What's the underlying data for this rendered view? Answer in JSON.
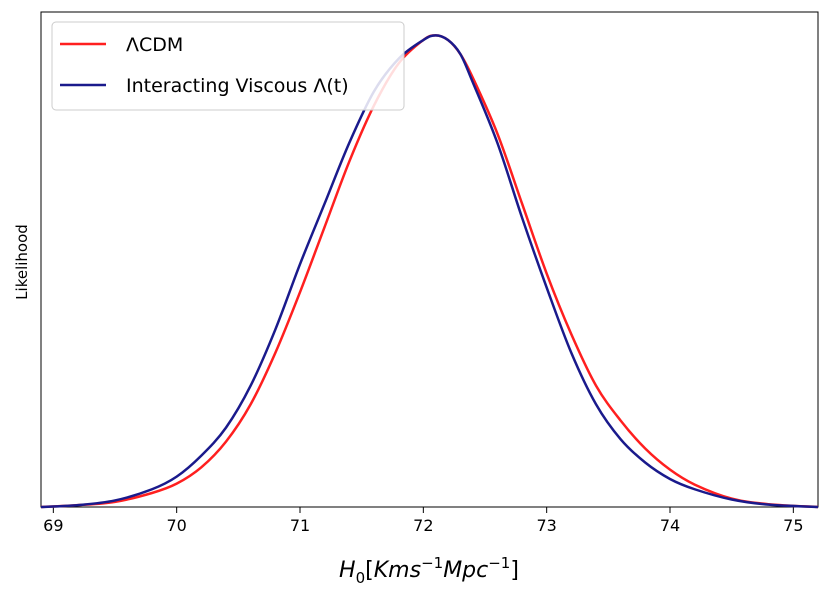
{
  "chart_data": {
    "type": "line",
    "title": "",
    "xlabel_main": "H",
    "xlabel_sub": "0",
    "xlabel_bracket_open": "[",
    "xlabel_kms": "Kms",
    "xlabel_exp1": "−1",
    "xlabel_mpc": "Mpc",
    "xlabel_exp2": "−1",
    "xlabel_bracket_close": "]",
    "ylabel": "Likelihood",
    "xlim": [
      68.9,
      75.2
    ],
    "ylim": [
      0,
      1.06
    ],
    "xticks": [
      69,
      70,
      71,
      72,
      73,
      74,
      75
    ],
    "xtick_labels": [
      "69",
      "70",
      "71",
      "72",
      "73",
      "74",
      "75"
    ],
    "yticks_shown": false,
    "grid": false,
    "legend": {
      "placement": "top-left",
      "frame": true
    },
    "series": [
      {
        "name": "ΛCDM",
        "color": "#ff1f1f",
        "x": [
          68.9,
          69.2,
          69.5,
          69.8,
          70.0,
          70.2,
          70.4,
          70.6,
          70.8,
          71.0,
          71.2,
          71.4,
          71.6,
          71.8,
          72.0,
          72.1,
          72.2,
          72.3,
          72.4,
          72.6,
          72.8,
          73.0,
          73.2,
          73.4,
          73.6,
          73.8,
          74.0,
          74.2,
          74.5,
          74.8,
          75.2
        ],
        "y": [
          0.0,
          0.004,
          0.011,
          0.03,
          0.05,
          0.085,
          0.14,
          0.22,
          0.33,
          0.46,
          0.6,
          0.74,
          0.86,
          0.95,
          1.0,
          1.01,
          1.0,
          0.97,
          0.92,
          0.8,
          0.65,
          0.5,
          0.37,
          0.26,
          0.185,
          0.125,
          0.08,
          0.048,
          0.018,
          0.006,
          0.0
        ]
      },
      {
        "name": "Interacting Viscous Λ(t)",
        "color": "#1a1a8c",
        "x": [
          68.9,
          69.2,
          69.5,
          69.8,
          70.0,
          70.2,
          70.4,
          70.6,
          70.8,
          71.0,
          71.2,
          71.4,
          71.6,
          71.8,
          72.0,
          72.1,
          72.2,
          72.3,
          72.4,
          72.6,
          72.8,
          73.0,
          73.2,
          73.4,
          73.6,
          73.8,
          74.0,
          74.2,
          74.5,
          74.8,
          75.2
        ],
        "y": [
          0.0,
          0.004,
          0.014,
          0.038,
          0.065,
          0.11,
          0.17,
          0.26,
          0.38,
          0.52,
          0.65,
          0.78,
          0.89,
          0.96,
          1.0,
          1.01,
          1.0,
          0.97,
          0.91,
          0.78,
          0.62,
          0.47,
          0.33,
          0.22,
          0.145,
          0.095,
          0.06,
          0.038,
          0.016,
          0.005,
          0.0
        ]
      }
    ]
  }
}
